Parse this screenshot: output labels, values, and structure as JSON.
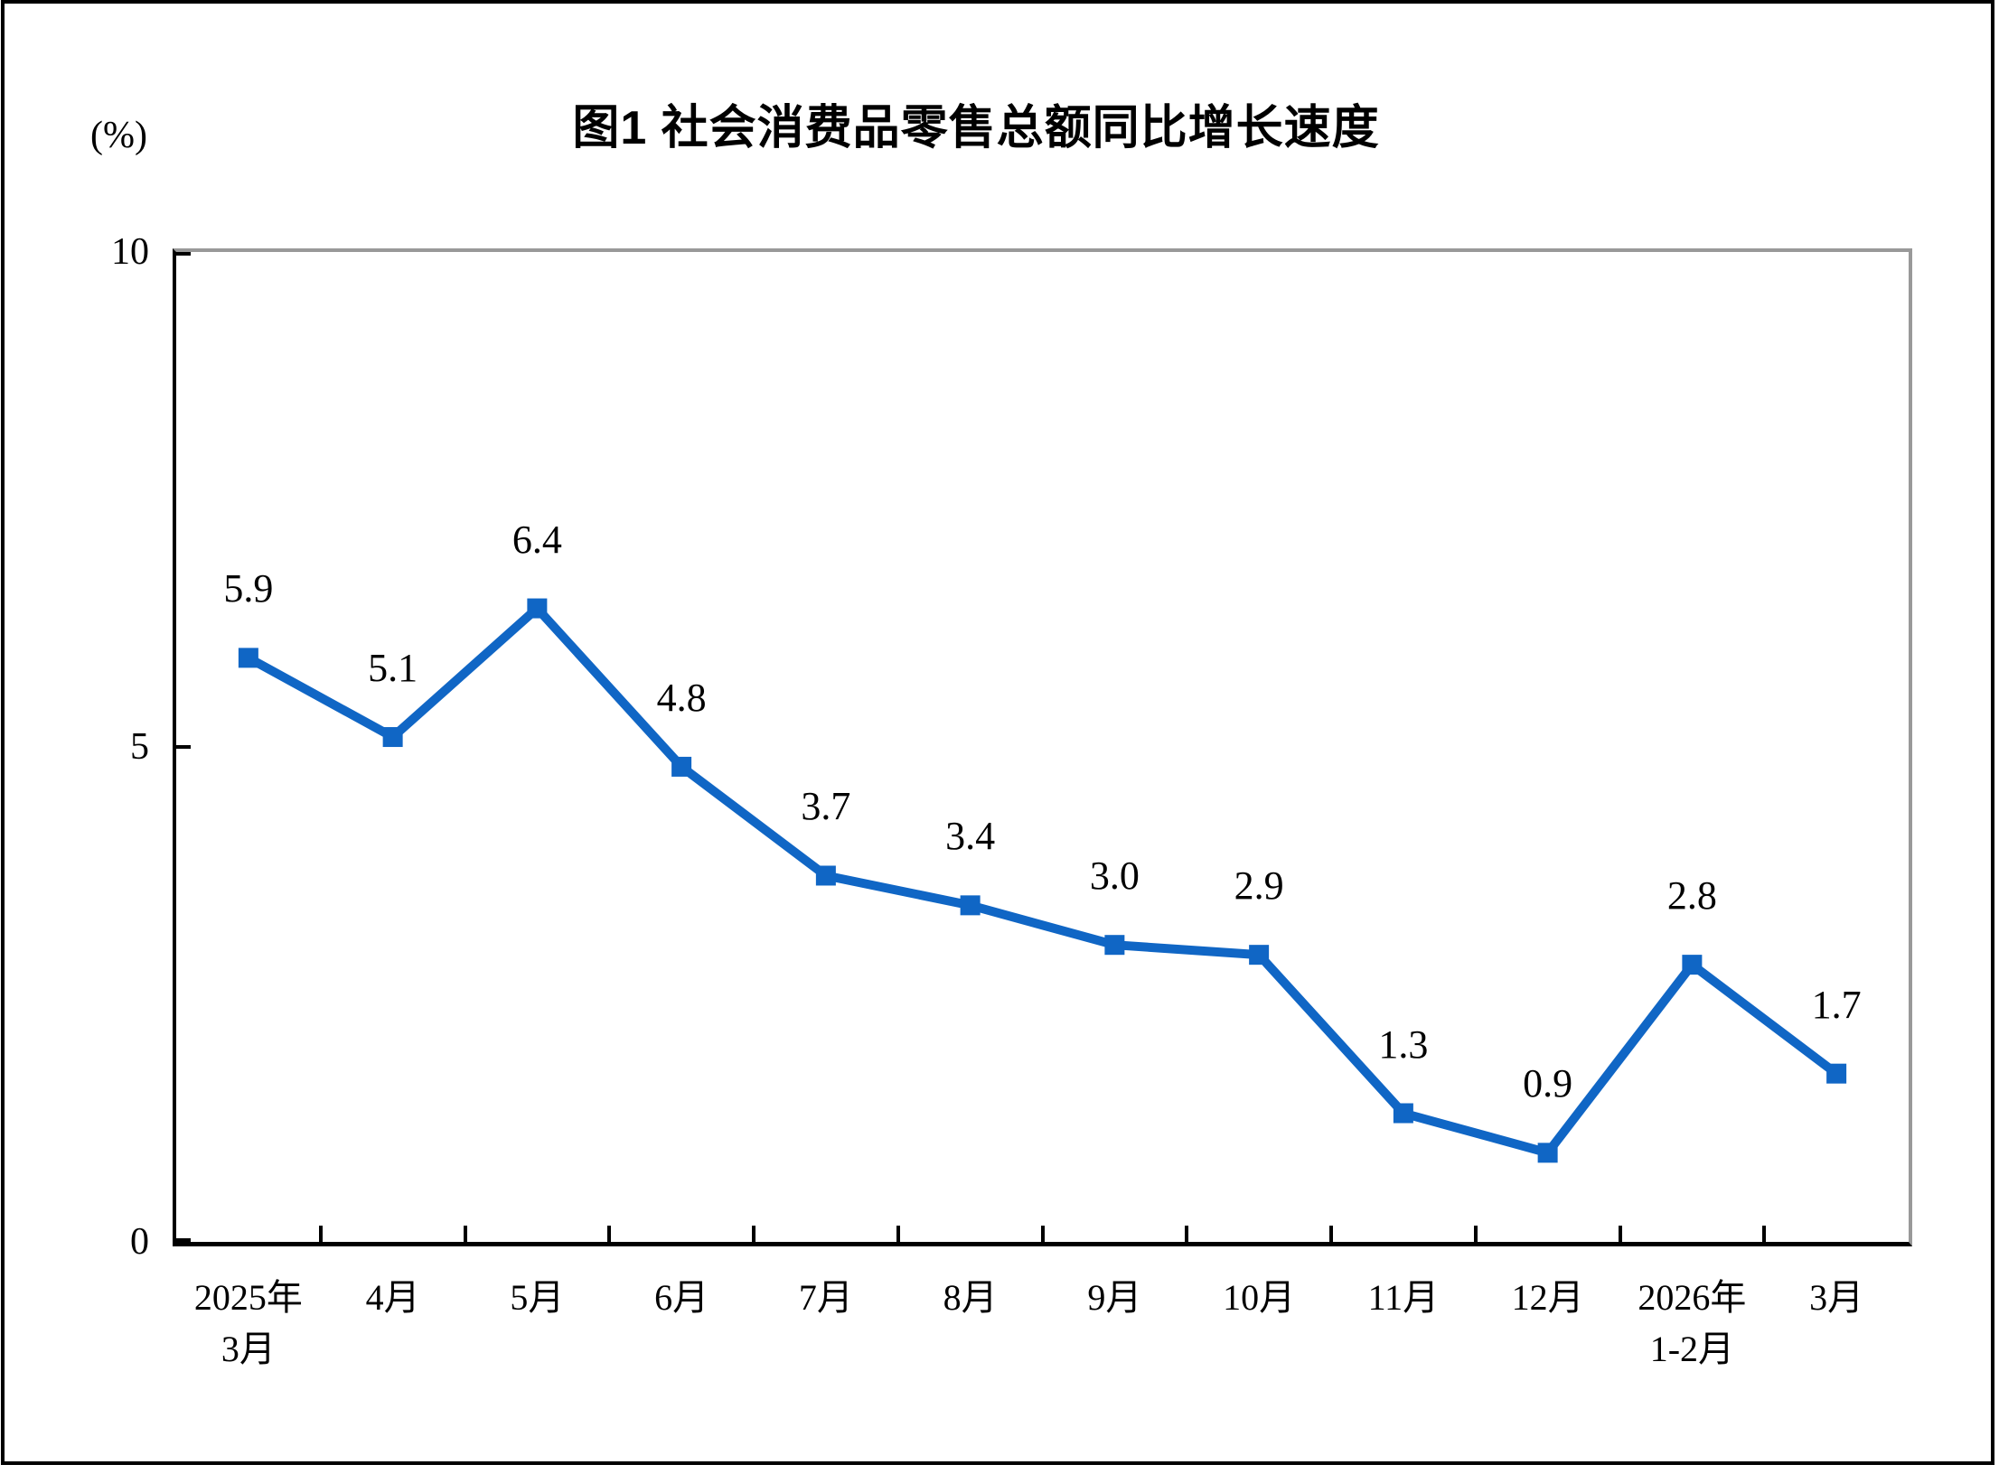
{
  "figure": {
    "title": "图1 社会消费品零售总额同比增长速度",
    "y_axis_unit": "(%)"
  },
  "chart_data": {
    "type": "line",
    "title": "图1 社会消费品零售总额同比增长速度",
    "ylabel": "(%)",
    "xlabel": "",
    "categories": [
      "2025年\n3月",
      "4月",
      "5月",
      "6月",
      "7月",
      "8月",
      "9月",
      "10月",
      "11月",
      "12月",
      "2026年\n1-2月",
      "3月"
    ],
    "values": [
      5.9,
      5.1,
      6.4,
      4.8,
      3.7,
      3.4,
      3.0,
      2.9,
      1.3,
      0.9,
      2.8,
      1.7
    ],
    "data_labels": [
      "5.9",
      "5.1",
      "6.4",
      "4.8",
      "3.7",
      "3.4",
      "3.0",
      "2.9",
      "1.3",
      "0.9",
      "2.8",
      "1.7"
    ],
    "ylim": [
      0,
      10
    ],
    "y_ticks": [
      0,
      5,
      10
    ],
    "grid": false,
    "legend": null,
    "line_color": "#1066C5",
    "marker": "square"
  }
}
